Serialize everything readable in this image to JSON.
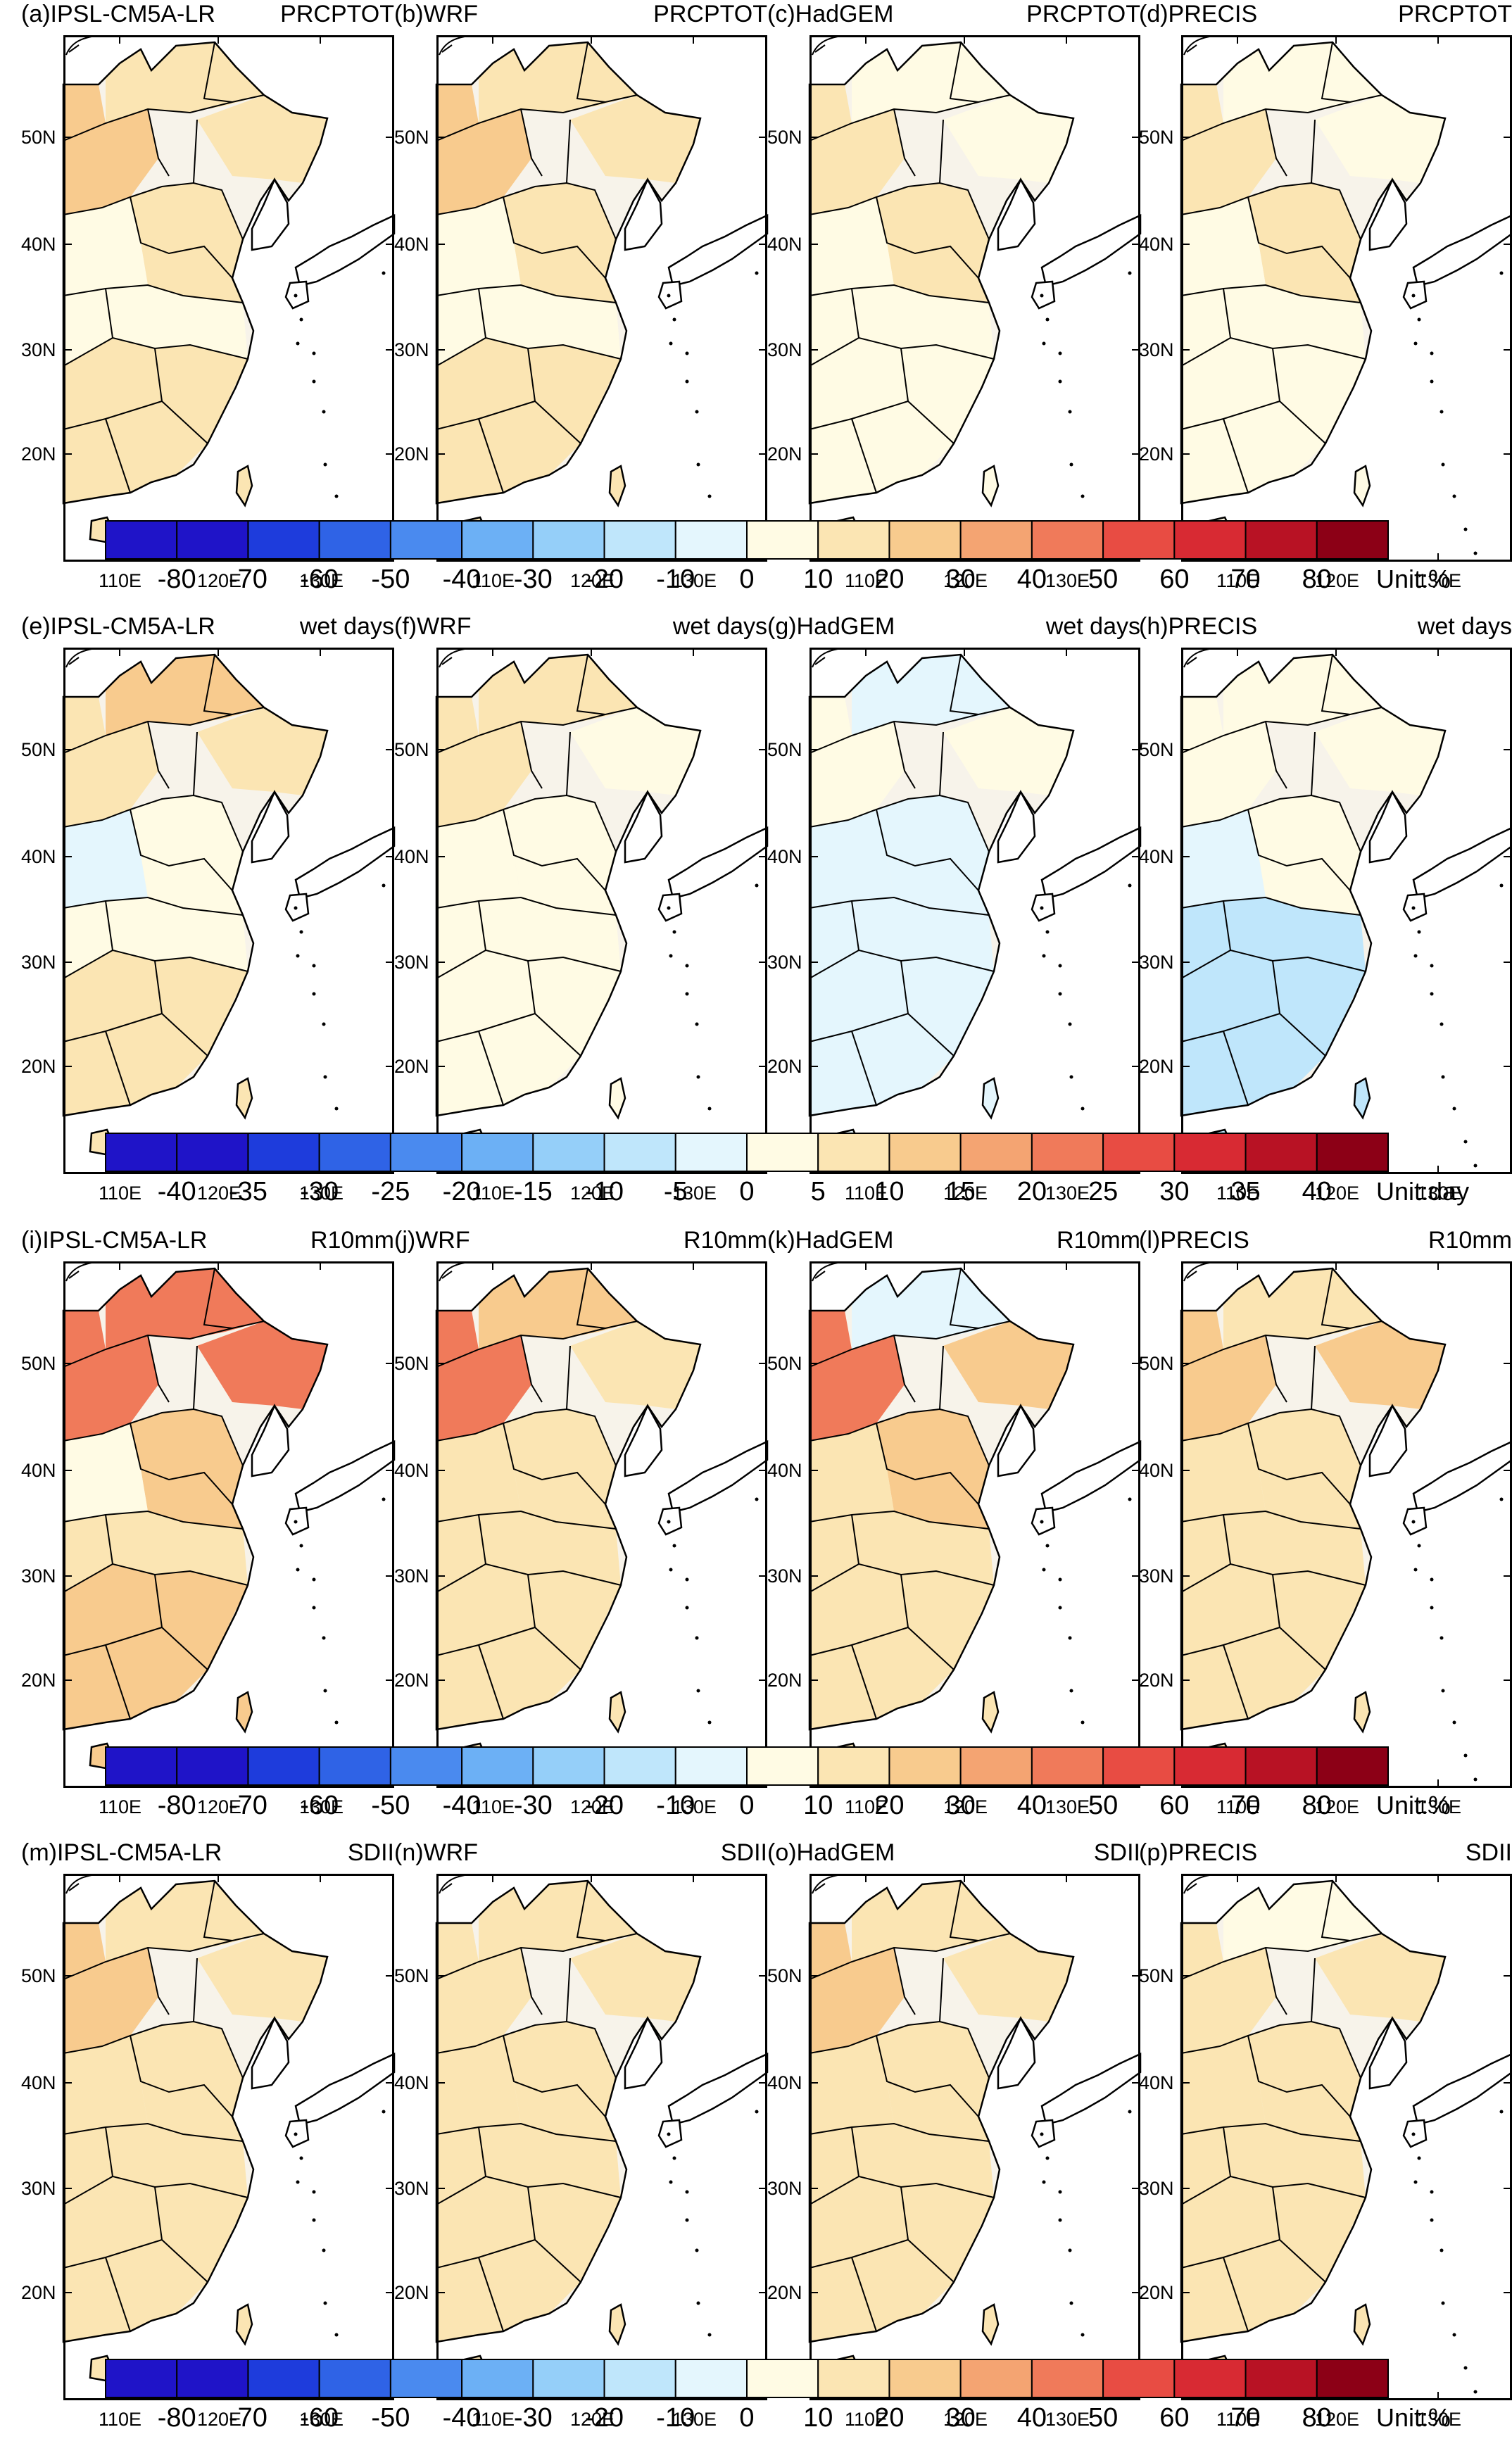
{
  "rows": [
    {
      "variable": "PRCPTOT",
      "panels": [
        {
          "label": "(a)IPSL-CM5A-LR",
          "var": "PRCPTOT",
          "tone": [
            0.15,
            0.1,
            0.25,
            0.15,
            0.05,
            0.05,
            0.15
          ]
        },
        {
          "label": "(b)WRF",
          "var": "PRCPTOT",
          "tone": [
            0.15,
            0.1,
            0.25,
            0.15,
            0.05,
            0.05,
            0.15
          ]
        },
        {
          "label": "(c)HadGEM",
          "var": "PRCPTOT",
          "tone": [
            -0.05,
            0.05,
            0.15,
            0.1,
            0.05,
            0.05,
            0.05
          ]
        },
        {
          "label": "(d)PRECIS",
          "var": "PRCPTOT",
          "tone": [
            0.05,
            0.05,
            0.1,
            0.1,
            0.05,
            0.05,
            0.05
          ]
        }
      ],
      "colorbar": {
        "ticks": [
          "-80",
          "-70",
          "-60",
          "-50",
          "-40",
          "-30",
          "-20",
          "-10",
          "0",
          "10",
          "20",
          "30",
          "40",
          "50",
          "60",
          "70",
          "80"
        ],
        "unit": "Unit:%"
      }
    },
    {
      "variable": "wet days",
      "panels": [
        {
          "label": "(e)IPSL-CM5A-LR",
          "var": "wet days",
          "tone": [
            0.25,
            0.1,
            0.15,
            0.05,
            -0.1,
            0.05,
            0.1
          ]
        },
        {
          "label": "(f)WRF",
          "var": "wet days",
          "tone": [
            0.1,
            0.05,
            0.1,
            -0.05,
            -0.05,
            -0.05,
            0.05
          ]
        },
        {
          "label": "(g)HadGEM",
          "var": "wet days",
          "tone": [
            -0.1,
            0.05,
            0.05,
            -0.1,
            -0.1,
            -0.1,
            -0.1
          ]
        },
        {
          "label": "(h)PRECIS",
          "var": "wet days",
          "tone": [
            0.05,
            0.05,
            0.05,
            -0.05,
            -0.1,
            -0.2,
            -0.25
          ]
        }
      ],
      "colorbar": {
        "ticks": [
          "-40",
          "-35",
          "-30",
          "-25",
          "-20",
          "-15",
          "-10",
          "-5",
          "0",
          "5",
          "10",
          "15",
          "20",
          "25",
          "30",
          "35",
          "40"
        ],
        "unit": "Unit:day"
      }
    },
    {
      "variable": "R10mm",
      "panels": [
        {
          "label": "(i)IPSL-CM5A-LR",
          "var": "R10mm",
          "tone": [
            0.45,
            0.55,
            0.55,
            0.25,
            0.05,
            0.15,
            0.25
          ]
        },
        {
          "label": "(j)WRF",
          "var": "R10mm",
          "tone": [
            0.2,
            0.15,
            0.55,
            0.15,
            0.1,
            0.1,
            0.15
          ]
        },
        {
          "label": "(k)HadGEM",
          "var": "R10mm",
          "tone": [
            -0.1,
            0.2,
            0.45,
            0.2,
            0.15,
            0.1,
            0.15
          ]
        },
        {
          "label": "(l)PRECIS",
          "var": "R10mm",
          "tone": [
            0.15,
            0.25,
            0.3,
            0.15,
            0.1,
            0.1,
            0.15
          ]
        }
      ],
      "colorbar": {
        "ticks": [
          "-80",
          "-70",
          "-60",
          "-50",
          "-40",
          "-30",
          "-20",
          "-10",
          "0",
          "10",
          "20",
          "30",
          "40",
          "50",
          "60",
          "70",
          "80"
        ],
        "unit": "Unit:%"
      }
    },
    {
      "variable": "SDII",
      "panels": [
        {
          "label": "(m)IPSL-CM5A-LR",
          "var": "SDII",
          "tone": [
            0.15,
            0.15,
            0.2,
            0.15,
            0.1,
            0.1,
            0.15
          ]
        },
        {
          "label": "(n)WRF",
          "var": "SDII",
          "tone": [
            0.1,
            0.1,
            0.15,
            0.15,
            0.1,
            0.1,
            0.15
          ]
        },
        {
          "label": "(o)HadGEM",
          "var": "SDII",
          "tone": [
            0.1,
            0.15,
            0.2,
            0.15,
            0.15,
            0.1,
            0.15
          ]
        },
        {
          "label": "(p)PRECIS",
          "var": "SDII",
          "tone": [
            0.05,
            0.1,
            0.15,
            0.15,
            0.1,
            0.1,
            0.15
          ]
        }
      ],
      "colorbar": {
        "ticks": [
          "-80",
          "-70",
          "-60",
          "-50",
          "-40",
          "-30",
          "-20",
          "-10",
          "0",
          "10",
          "20",
          "30",
          "40",
          "50",
          "60",
          "70",
          "80"
        ],
        "unit": "Unit:%"
      }
    }
  ],
  "lat_labels": [
    "50N",
    "40N",
    "30N",
    "20N"
  ],
  "lon_labels": [
    "110E",
    "120E",
    "130E"
  ],
  "colors": {
    "scale": [
      "#1f14c8",
      "#1e3cdc",
      "#2f63e6",
      "#4a8aef",
      "#6cb0f5",
      "#95cff9",
      "#bfe6fb",
      "#e4f6fd",
      "#fffbe4",
      "#fbe5b3",
      "#f8cb8e",
      "#f4a472",
      "#f07a5a",
      "#e84c43",
      "#d82a33",
      "#b81224",
      "#8c0016"
    ],
    "land_neutral": "#f7f3ea",
    "sea": "#ffffff",
    "border": "#000000"
  }
}
